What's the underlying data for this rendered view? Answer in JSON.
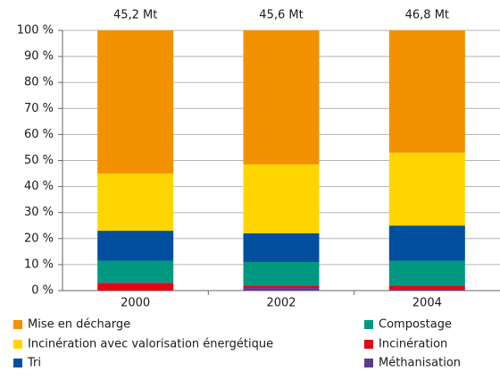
{
  "chart_data": {
    "type": "stacked-bar",
    "categories": [
      "2000",
      "2002",
      "2004"
    ],
    "totals": [
      {
        "value": 45.2,
        "label": "45,2 Mt"
      },
      {
        "value": 45.6,
        "label": "45,6 Mt"
      },
      {
        "value": 46.8,
        "label": "46,8 Mt"
      }
    ],
    "series": [
      {
        "name": "Mise en décharge",
        "color": "#f39200",
        "values": [
          55,
          51.5,
          47
        ]
      },
      {
        "name": "Incinération avec valorisation énergétique",
        "color": "#ffd500",
        "values": [
          22,
          26.5,
          28
        ]
      },
      {
        "name": "Tri",
        "color": "#004f9f",
        "values": [
          11.5,
          11,
          13.5
        ]
      },
      {
        "name": "Compostage",
        "color": "#009880",
        "values": [
          8.5,
          9,
          9.5
        ]
      },
      {
        "name": "Incinération",
        "color": "#e30613",
        "values": [
          3,
          1,
          1.5
        ]
      },
      {
        "name": "Méthanisation",
        "color": "#5b3b8c",
        "values": [
          0,
          1,
          0.5
        ]
      }
    ],
    "ylim": [
      0,
      100
    ],
    "yticks": [
      {
        "value": 0,
        "label": "0 %"
      },
      {
        "value": 10,
        "label": "10 %"
      },
      {
        "value": 20,
        "label": "20 %"
      },
      {
        "value": 30,
        "label": "30 %"
      },
      {
        "value": 40,
        "label": "40 %"
      },
      {
        "value": 50,
        "label": "50 %"
      },
      {
        "value": 60,
        "label": "60 %"
      },
      {
        "value": 70,
        "label": "70 %"
      },
      {
        "value": 80,
        "label": "80 %"
      },
      {
        "value": 90,
        "label": "90 %"
      },
      {
        "value": 100,
        "label": "100 %"
      }
    ],
    "grid": true
  }
}
